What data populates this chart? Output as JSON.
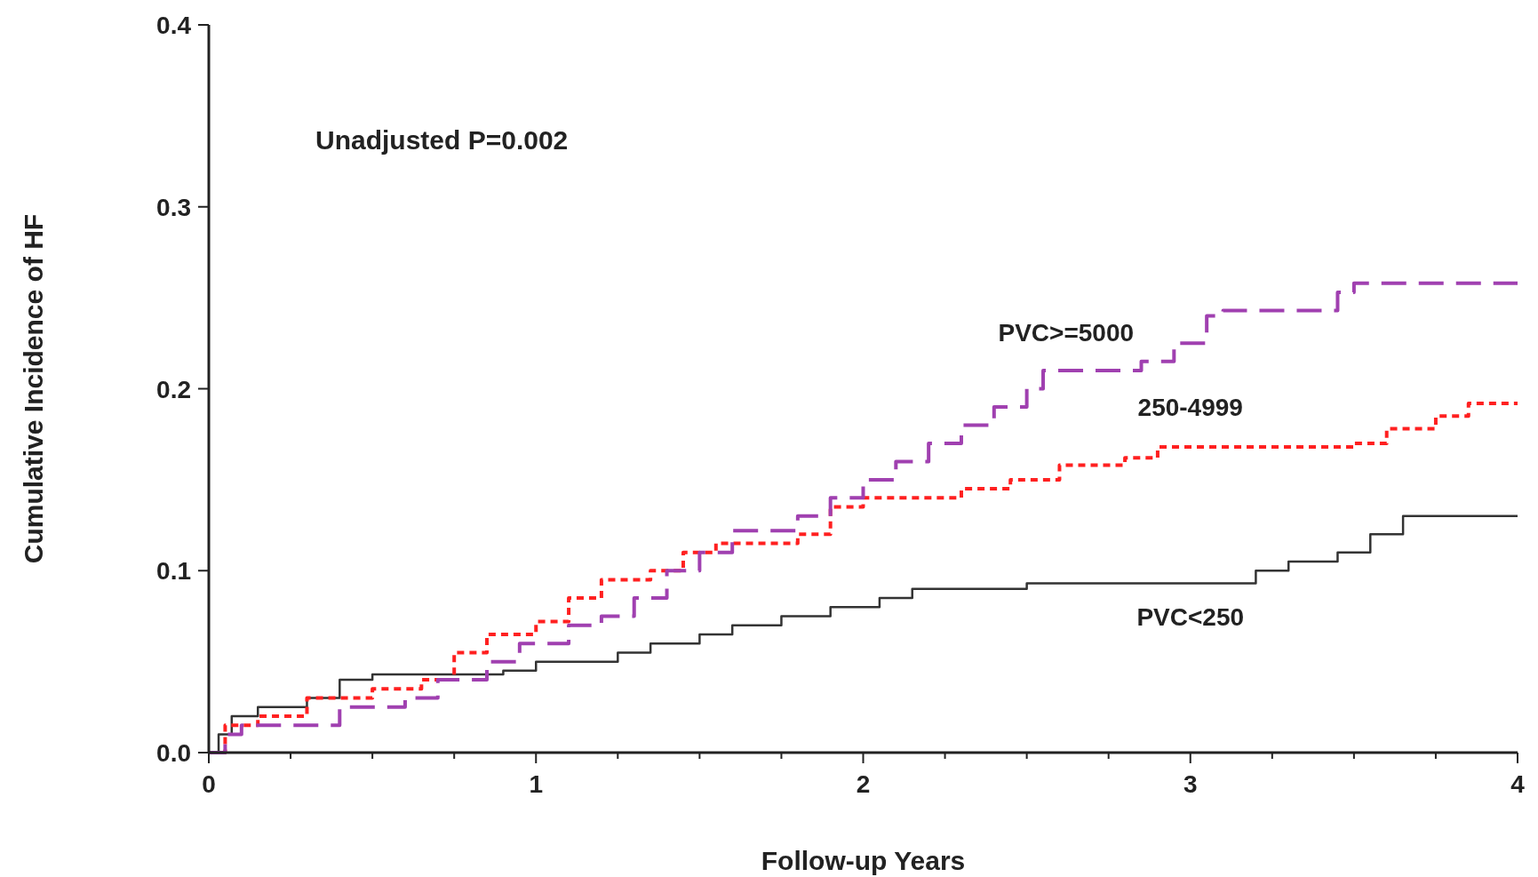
{
  "chart_data": {
    "type": "step",
    "xlabel": "Follow-up Years",
    "ylabel": "Cumulative Incidence of HF",
    "annotations": [
      "Unadjusted P=0.002"
    ],
    "xlim": [
      0,
      4
    ],
    "ylim": [
      0,
      0.4
    ],
    "xticks": [
      0,
      {
        "value": 0.25,
        "label": null
      },
      {
        "value": 0.5,
        "label": null
      },
      {
        "value": 0.75,
        "label": null
      },
      1,
      {
        "value": 1.25,
        "label": null
      },
      {
        "value": 1.5,
        "label": null
      },
      {
        "value": 1.75,
        "label": null
      },
      2,
      {
        "value": 2.25,
        "label": null
      },
      {
        "value": 2.5,
        "label": null
      },
      {
        "value": 2.75,
        "label": null
      },
      3,
      {
        "value": 3.25,
        "label": null
      },
      {
        "value": 3.5,
        "label": null
      },
      {
        "value": 3.75,
        "label": null
      },
      4
    ],
    "yticks": [
      {
        "value": 0,
        "label": "0.0"
      },
      0.1,
      0.2,
      0.3,
      0.4
    ],
    "grid": false,
    "series": [
      {
        "name": "PVC<250",
        "color": "#333333",
        "line_style": "solid",
        "x": [
          0,
          0.03,
          0.07,
          0.15,
          0.3,
          0.4,
          0.5,
          0.9,
          1.0,
          1.25,
          1.35,
          1.5,
          1.6,
          1.75,
          1.9,
          2.05,
          2.15,
          2.5,
          3.2,
          3.3,
          3.45,
          3.55,
          3.65,
          4.0
        ],
        "values": [
          0,
          0.01,
          0.02,
          0.025,
          0.03,
          0.04,
          0.043,
          0.045,
          0.05,
          0.055,
          0.06,
          0.065,
          0.07,
          0.075,
          0.08,
          0.085,
          0.09,
          0.093,
          0.1,
          0.105,
          0.11,
          0.12,
          0.13,
          0.13
        ]
      },
      {
        "name": "250-4999",
        "color": "#ff2020",
        "line_style": "dashed",
        "x": [
          0,
          0.05,
          0.15,
          0.3,
          0.5,
          0.65,
          0.75,
          0.85,
          1.0,
          1.1,
          1.2,
          1.35,
          1.45,
          1.55,
          1.8,
          1.9,
          2.0,
          2.3,
          2.45,
          2.6,
          2.8,
          2.9,
          3.5,
          3.6,
          3.75,
          3.85,
          4.0
        ],
        "values": [
          0,
          0.015,
          0.02,
          0.03,
          0.035,
          0.04,
          0.055,
          0.065,
          0.072,
          0.085,
          0.095,
          0.1,
          0.11,
          0.115,
          0.12,
          0.135,
          0.14,
          0.145,
          0.15,
          0.158,
          0.162,
          0.168,
          0.17,
          0.178,
          0.185,
          0.192,
          0.192
        ]
      },
      {
        "name": "PVC>=5000",
        "color": "#a040b0",
        "line_style": "dashed",
        "x": [
          0,
          0.05,
          0.1,
          0.4,
          0.6,
          0.7,
          0.85,
          0.95,
          1.1,
          1.2,
          1.3,
          1.4,
          1.5,
          1.6,
          1.8,
          1.9,
          2.0,
          2.1,
          2.2,
          2.3,
          2.4,
          2.5,
          2.55,
          2.85,
          2.95,
          3.05,
          3.1,
          3.45,
          3.5,
          4.0
        ],
        "values": [
          0,
          0.01,
          0.015,
          0.025,
          0.03,
          0.04,
          0.05,
          0.06,
          0.07,
          0.075,
          0.085,
          0.1,
          0.11,
          0.122,
          0.13,
          0.14,
          0.15,
          0.16,
          0.17,
          0.18,
          0.19,
          0.2,
          0.21,
          0.215,
          0.225,
          0.24,
          0.243,
          0.253,
          0.258,
          0.258
        ]
      }
    ]
  }
}
